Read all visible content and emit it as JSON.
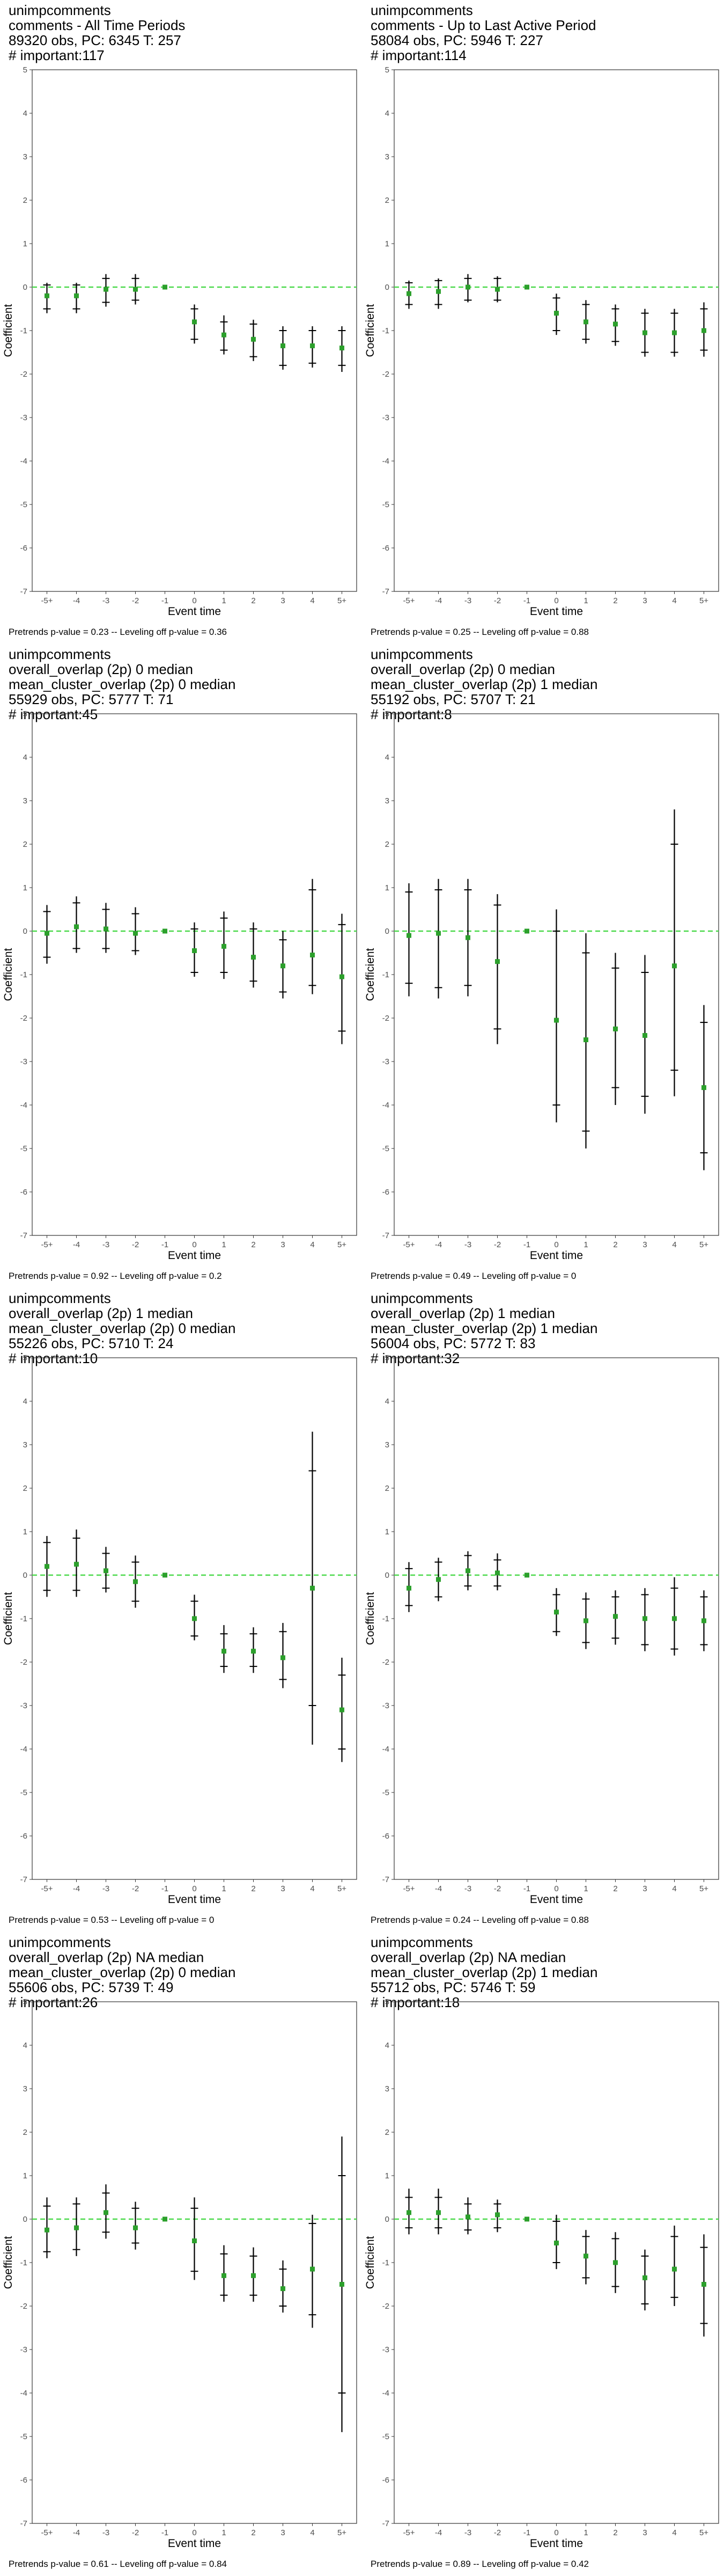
{
  "chart_data": [
    {
      "type": "scatter",
      "title": [
        "unimpcomments",
        "comments - All Time Periods",
        "89320 obs, PC: 6345 T: 257",
        "# important:117"
      ],
      "xlabel": "Event time",
      "ylabel": "Coefficient",
      "categories": [
        "-5+",
        "-4",
        "-3",
        "-2",
        "-1",
        "0",
        "1",
        "2",
        "3",
        "4",
        "5+"
      ],
      "ylim": [
        -7,
        5
      ],
      "yticks": [
        -7,
        -6,
        -5,
        -4,
        -3,
        -2,
        -1,
        0,
        1,
        2,
        3,
        4,
        5
      ],
      "estimate": [
        -0.2,
        -0.2,
        -0.05,
        -0.05,
        0,
        -0.8,
        -1.1,
        -1.2,
        -1.35,
        -1.35,
        -1.4
      ],
      "ci95": [
        [
          -0.6,
          0.1
        ],
        [
          -0.6,
          0.1
        ],
        [
          -0.45,
          0.3
        ],
        [
          -0.4,
          0.3
        ],
        [
          0,
          0
        ],
        [
          -1.3,
          -0.4
        ],
        [
          -1.55,
          -0.65
        ],
        [
          -1.7,
          -0.75
        ],
        [
          -1.9,
          -0.9
        ],
        [
          -1.85,
          -0.9
        ],
        [
          -1.95,
          -0.9
        ]
      ],
      "ci90": [
        [
          -0.5,
          0.05
        ],
        [
          -0.5,
          0.05
        ],
        [
          -0.35,
          0.2
        ],
        [
          -0.3,
          0.2
        ],
        [
          0,
          0
        ],
        [
          -1.2,
          -0.5
        ],
        [
          -1.45,
          -0.8
        ],
        [
          -1.6,
          -0.85
        ],
        [
          -1.8,
          -1.0
        ],
        [
          -1.75,
          -1.0
        ],
        [
          -1.8,
          -1.0
        ]
      ],
      "grid": false,
      "legend": "none",
      "reference_line": 0,
      "caption": "Pretrends p-value = 0.23 -- Leveling off p-value = 0.36",
      "colors": {
        "point": "#2ca02c",
        "interval": "#000000",
        "ref_line": "#4cd94c"
      }
    },
    {
      "type": "scatter",
      "title": [
        "unimpcomments",
        "comments - Up to Last Active Period",
        "58084 obs, PC: 5946 T: 227",
        "# important:114"
      ],
      "xlabel": "Event time",
      "ylabel": "Coefficient",
      "categories": [
        "-5+",
        "-4",
        "-3",
        "-2",
        "-1",
        "0",
        "1",
        "2",
        "3",
        "4",
        "5+"
      ],
      "ylim": [
        -7,
        5
      ],
      "yticks": [
        -7,
        -6,
        -5,
        -4,
        -3,
        -2,
        -1,
        0,
        1,
        2,
        3,
        4,
        5
      ],
      "estimate": [
        -0.15,
        -0.1,
        0,
        -0.05,
        0,
        -0.6,
        -0.8,
        -0.85,
        -1.05,
        -1.05,
        -1.0
      ],
      "ci95": [
        [
          -0.5,
          0.15
        ],
        [
          -0.5,
          0.2
        ],
        [
          -0.35,
          0.3
        ],
        [
          -0.35,
          0.25
        ],
        [
          0,
          0
        ],
        [
          -1.1,
          -0.15
        ],
        [
          -1.3,
          -0.3
        ],
        [
          -1.35,
          -0.4
        ],
        [
          -1.6,
          -0.5
        ],
        [
          -1.6,
          -0.5
        ],
        [
          -1.6,
          -0.35
        ]
      ],
      "ci90": [
        [
          -0.4,
          0.1
        ],
        [
          -0.4,
          0.15
        ],
        [
          -0.3,
          0.2
        ],
        [
          -0.3,
          0.2
        ],
        [
          0,
          0
        ],
        [
          -1.0,
          -0.25
        ],
        [
          -1.2,
          -0.4
        ],
        [
          -1.25,
          -0.5
        ],
        [
          -1.5,
          -0.6
        ],
        [
          -1.5,
          -0.6
        ],
        [
          -1.45,
          -0.5
        ]
      ],
      "grid": false,
      "legend": "none",
      "reference_line": 0,
      "caption": "Pretrends p-value = 0.25 -- Leveling off p-value = 0.88",
      "colors": {
        "point": "#2ca02c",
        "interval": "#000000",
        "ref_line": "#4cd94c"
      }
    },
    {
      "type": "scatter",
      "title": [
        "unimpcomments",
        "overall_overlap (2p) 0 median",
        "mean_cluster_overlap (2p) 0 median",
        "55929 obs, PC: 5777 T: 71",
        "# important:45"
      ],
      "xlabel": "Event time",
      "ylabel": "Coefficient",
      "categories": [
        "-5+",
        "-4",
        "-3",
        "-2",
        "-1",
        "0",
        "1",
        "2",
        "3",
        "4",
        "5+"
      ],
      "ylim": [
        -7,
        5
      ],
      "yticks": [
        -7,
        -6,
        -5,
        -4,
        -3,
        -2,
        -1,
        0,
        1,
        2,
        3,
        4,
        5
      ],
      "estimate": [
        -0.05,
        0.1,
        0.05,
        -0.05,
        0,
        -0.45,
        -0.35,
        -0.6,
        -0.8,
        -0.55,
        -1.05
      ],
      "ci95": [
        [
          -0.75,
          0.6
        ],
        [
          -0.5,
          0.8
        ],
        [
          -0.5,
          0.65
        ],
        [
          -0.55,
          0.55
        ],
        [
          0,
          0
        ],
        [
          -1.05,
          0.2
        ],
        [
          -1.1,
          0.45
        ],
        [
          -1.3,
          0.2
        ],
        [
          -1.55,
          0.0
        ],
        [
          -1.45,
          1.2
        ],
        [
          -2.6,
          0.4
        ]
      ],
      "ci90": [
        [
          -0.6,
          0.45
        ],
        [
          -0.4,
          0.65
        ],
        [
          -0.4,
          0.5
        ],
        [
          -0.45,
          0.4
        ],
        [
          0,
          0
        ],
        [
          -0.95,
          0.05
        ],
        [
          -0.95,
          0.3
        ],
        [
          -1.15,
          0.05
        ],
        [
          -1.4,
          -0.2
        ],
        [
          -1.25,
          0.95
        ],
        [
          -2.3,
          0.15
        ]
      ],
      "grid": false,
      "legend": "none",
      "reference_line": 0,
      "caption": "Pretrends p-value = 0.92 -- Leveling off p-value = 0.2",
      "colors": {
        "point": "#2ca02c",
        "interval": "#000000",
        "ref_line": "#4cd94c"
      }
    },
    {
      "type": "scatter",
      "title": [
        "unimpcomments",
        "overall_overlap (2p) 0 median",
        "mean_cluster_overlap (2p) 1 median",
        "55192 obs, PC: 5707 T: 21",
        "# important:8"
      ],
      "xlabel": "Event time",
      "ylabel": "Coefficient",
      "categories": [
        "-5+",
        "-4",
        "-3",
        "-2",
        "-1",
        "0",
        "1",
        "2",
        "3",
        "4",
        "5+"
      ],
      "ylim": [
        -7,
        5
      ],
      "yticks": [
        -7,
        -6,
        -5,
        -4,
        -3,
        -2,
        -1,
        0,
        1,
        2,
        3,
        4,
        5
      ],
      "estimate": [
        -0.1,
        -0.05,
        -0.15,
        -0.7,
        0,
        -2.05,
        -2.5,
        -2.25,
        -2.4,
        -0.8,
        -3.6
      ],
      "ci95": [
        [
          -1.5,
          1.1
        ],
        [
          -1.55,
          1.2
        ],
        [
          -1.5,
          1.2
        ],
        [
          -2.6,
          0.85
        ],
        [
          0,
          0
        ],
        [
          -4.4,
          0.5
        ],
        [
          -5.0,
          -0.05
        ],
        [
          -4.0,
          -0.5
        ],
        [
          -4.2,
          -0.55
        ],
        [
          -3.8,
          2.8
        ],
        [
          -5.5,
          -1.7
        ]
      ],
      "ci90": [
        [
          -1.2,
          0.9
        ],
        [
          -1.3,
          0.95
        ],
        [
          -1.25,
          0.95
        ],
        [
          -2.25,
          0.6
        ],
        [
          0,
          0
        ],
        [
          -4.0,
          0.0
        ],
        [
          -4.6,
          -0.5
        ],
        [
          -3.6,
          -0.85
        ],
        [
          -3.8,
          -0.95
        ],
        [
          -3.2,
          2.0
        ],
        [
          -5.1,
          -2.1
        ]
      ],
      "grid": false,
      "legend": "none",
      "reference_line": 0,
      "caption": "Pretrends p-value = 0.49 -- Leveling off p-value = 0",
      "colors": {
        "point": "#2ca02c",
        "interval": "#000000",
        "ref_line": "#4cd94c"
      }
    },
    {
      "type": "scatter",
      "title": [
        "unimpcomments",
        "overall_overlap (2p) 1 median",
        "mean_cluster_overlap (2p) 0 median",
        "55226 obs, PC: 5710 T: 24",
        "# important:10"
      ],
      "xlabel": "Event time",
      "ylabel": "Coefficient",
      "categories": [
        "-5+",
        "-4",
        "-3",
        "-2",
        "-1",
        "0",
        "1",
        "2",
        "3",
        "4",
        "5+"
      ],
      "ylim": [
        -7,
        5
      ],
      "yticks": [
        -7,
        -6,
        -5,
        -4,
        -3,
        -2,
        -1,
        0,
        1,
        2,
        3,
        4,
        5
      ],
      "estimate": [
        0.2,
        0.25,
        0.1,
        -0.15,
        0,
        -1.0,
        -1.75,
        -1.75,
        -1.9,
        -0.3,
        -3.1
      ],
      "ci95": [
        [
          -0.5,
          0.9
        ],
        [
          -0.5,
          1.05
        ],
        [
          -0.4,
          0.65
        ],
        [
          -0.75,
          0.45
        ],
        [
          0,
          0
        ],
        [
          -1.5,
          -0.45
        ],
        [
          -2.25,
          -1.15
        ],
        [
          -2.25,
          -1.2
        ],
        [
          -2.6,
          -1.1
        ],
        [
          -3.9,
          3.3
        ],
        [
          -4.3,
          -1.9
        ]
      ],
      "ci90": [
        [
          -0.35,
          0.75
        ],
        [
          -0.35,
          0.85
        ],
        [
          -0.3,
          0.5
        ],
        [
          -0.6,
          0.3
        ],
        [
          0,
          0
        ],
        [
          -1.4,
          -0.6
        ],
        [
          -2.1,
          -1.35
        ],
        [
          -2.1,
          -1.35
        ],
        [
          -2.4,
          -1.3
        ],
        [
          -3.0,
          2.4
        ],
        [
          -4.0,
          -2.3
        ]
      ],
      "grid": false,
      "legend": "none",
      "reference_line": 0,
      "caption": "Pretrends p-value = 0.53 -- Leveling off p-value = 0",
      "colors": {
        "point": "#2ca02c",
        "interval": "#000000",
        "ref_line": "#4cd94c"
      }
    },
    {
      "type": "scatter",
      "title": [
        "unimpcomments",
        "overall_overlap (2p) 1 median",
        "mean_cluster_overlap (2p) 1 median",
        "56004 obs, PC: 5772 T: 83",
        "# important:32"
      ],
      "xlabel": "Event time",
      "ylabel": "Coefficient",
      "categories": [
        "-5+",
        "-4",
        "-3",
        "-2",
        "-1",
        "0",
        "1",
        "2",
        "3",
        "4",
        "5+"
      ],
      "ylim": [
        -7,
        5
      ],
      "yticks": [
        -7,
        -6,
        -5,
        -4,
        -3,
        -2,
        -1,
        0,
        1,
        2,
        3,
        4,
        5
      ],
      "estimate": [
        -0.3,
        -0.1,
        0.1,
        0.05,
        0,
        -0.85,
        -1.05,
        -0.95,
        -1.0,
        -1.0,
        -1.05
      ],
      "ci95": [
        [
          -0.85,
          0.3
        ],
        [
          -0.6,
          0.4
        ],
        [
          -0.35,
          0.55
        ],
        [
          -0.35,
          0.5
        ],
        [
          0,
          0
        ],
        [
          -1.4,
          -0.3
        ],
        [
          -1.7,
          -0.4
        ],
        [
          -1.6,
          -0.35
        ],
        [
          -1.75,
          -0.3
        ],
        [
          -1.85,
          -0.05
        ],
        [
          -1.75,
          -0.35
        ]
      ],
      "ci90": [
        [
          -0.7,
          0.15
        ],
        [
          -0.5,
          0.3
        ],
        [
          -0.25,
          0.45
        ],
        [
          -0.25,
          0.35
        ],
        [
          0,
          0
        ],
        [
          -1.3,
          -0.45
        ],
        [
          -1.55,
          -0.55
        ],
        [
          -1.45,
          -0.5
        ],
        [
          -1.6,
          -0.45
        ],
        [
          -1.7,
          -0.3
        ],
        [
          -1.6,
          -0.5
        ]
      ],
      "grid": false,
      "legend": "none",
      "reference_line": 0,
      "caption": "Pretrends p-value = 0.24 -- Leveling off p-value = 0.88",
      "colors": {
        "point": "#2ca02c",
        "interval": "#000000",
        "ref_line": "#4cd94c"
      }
    },
    {
      "type": "scatter",
      "title": [
        "unimpcomments",
        "overall_overlap (2p) NA median",
        "mean_cluster_overlap (2p) 0 median",
        "55606 obs, PC: 5739 T: 49",
        "# important:26"
      ],
      "xlabel": "Event time",
      "ylabel": "Coefficient",
      "categories": [
        "-5+",
        "-4",
        "-3",
        "-2",
        "-1",
        "0",
        "1",
        "2",
        "3",
        "4",
        "5+"
      ],
      "ylim": [
        -7,
        5
      ],
      "yticks": [
        -7,
        -6,
        -5,
        -4,
        -3,
        -2,
        -1,
        0,
        1,
        2,
        3,
        4,
        5
      ],
      "estimate": [
        -0.25,
        -0.2,
        0.15,
        -0.2,
        0,
        -0.5,
        -1.3,
        -1.3,
        -1.6,
        -1.15,
        -1.5
      ],
      "ci95": [
        [
          -0.9,
          0.5
        ],
        [
          -0.85,
          0.5
        ],
        [
          -0.45,
          0.8
        ],
        [
          -0.7,
          0.4
        ],
        [
          0,
          0
        ],
        [
          -1.4,
          0.5
        ],
        [
          -1.9,
          -0.6
        ],
        [
          -1.9,
          -0.65
        ],
        [
          -2.15,
          -0.95
        ],
        [
          -2.5,
          0.1
        ],
        [
          -4.9,
          1.9
        ]
      ],
      "ci90": [
        [
          -0.75,
          0.3
        ],
        [
          -0.7,
          0.35
        ],
        [
          -0.3,
          0.6
        ],
        [
          -0.55,
          0.25
        ],
        [
          0,
          0
        ],
        [
          -1.2,
          0.25
        ],
        [
          -1.75,
          -0.8
        ],
        [
          -1.75,
          -0.85
        ],
        [
          -2.0,
          -1.15
        ],
        [
          -2.2,
          -0.1
        ],
        [
          -4.0,
          1.0
        ]
      ],
      "grid": false,
      "legend": "none",
      "reference_line": 0,
      "caption": "Pretrends p-value = 0.61 -- Leveling off p-value = 0.84",
      "colors": {
        "point": "#2ca02c",
        "interval": "#000000",
        "ref_line": "#4cd94c"
      }
    },
    {
      "type": "scatter",
      "title": [
        "unimpcomments",
        "overall_overlap (2p) NA median",
        "mean_cluster_overlap (2p) 1 median",
        "55712 obs, PC: 5746 T: 59",
        "# important:18"
      ],
      "xlabel": "Event time",
      "ylabel": "Coefficient",
      "categories": [
        "-5+",
        "-4",
        "-3",
        "-2",
        "-1",
        "0",
        "1",
        "2",
        "3",
        "4",
        "5+"
      ],
      "ylim": [
        -7,
        5
      ],
      "yticks": [
        -7,
        -6,
        -5,
        -4,
        -3,
        -2,
        -1,
        0,
        1,
        2,
        3,
        4,
        5
      ],
      "estimate": [
        0.15,
        0.15,
        0.05,
        0.1,
        0,
        -0.55,
        -0.85,
        -1.0,
        -1.35,
        -1.15,
        -1.5
      ],
      "ci95": [
        [
          -0.35,
          0.7
        ],
        [
          -0.35,
          0.7
        ],
        [
          -0.35,
          0.5
        ],
        [
          -0.3,
          0.45
        ],
        [
          0,
          0
        ],
        [
          -1.15,
          0.1
        ],
        [
          -1.5,
          -0.25
        ],
        [
          -1.7,
          -0.3
        ],
        [
          -2.1,
          -0.7
        ],
        [
          -2.0,
          -0.15
        ],
        [
          -2.7,
          -0.35
        ]
      ],
      "ci90": [
        [
          -0.2,
          0.5
        ],
        [
          -0.2,
          0.5
        ],
        [
          -0.25,
          0.35
        ],
        [
          -0.2,
          0.35
        ],
        [
          0,
          0
        ],
        [
          -1.0,
          -0.05
        ],
        [
          -1.35,
          -0.4
        ],
        [
          -1.55,
          -0.45
        ],
        [
          -1.95,
          -0.85
        ],
        [
          -1.8,
          -0.4
        ],
        [
          -2.4,
          -0.65
        ]
      ],
      "grid": false,
      "legend": "none",
      "reference_line": 0,
      "caption": "Pretrends p-value = 0.89 -- Leveling off p-value = 0.42",
      "colors": {
        "point": "#2ca02c",
        "interval": "#000000",
        "ref_line": "#4cd94c"
      }
    }
  ]
}
